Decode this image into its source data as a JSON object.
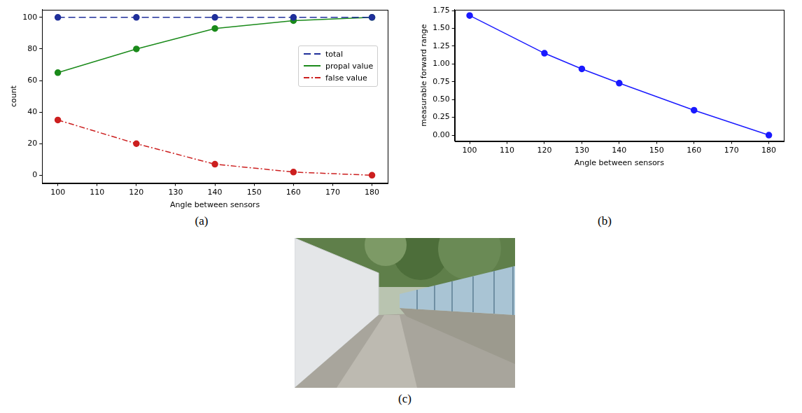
{
  "chart_data": [
    {
      "type": "line",
      "caption": "(a)",
      "x_label": "Angle between sensors",
      "y_label": "count",
      "x": [
        100,
        120,
        140,
        160,
        180
      ],
      "xlim": [
        96,
        184
      ],
      "xticks": [
        100,
        110,
        120,
        130,
        140,
        150,
        160,
        170,
        180
      ],
      "ylim": [
        -5,
        105
      ],
      "yticks": [
        0,
        20,
        40,
        60,
        80,
        100
      ],
      "grid": false,
      "legend": "right",
      "series": [
        {
          "name": "total",
          "color": "#1f2f9a",
          "marker": "o",
          "line_style": "dashed",
          "values": [
            100,
            100,
            100,
            100,
            100
          ]
        },
        {
          "name": "propal value",
          "color": "#1a8a1a",
          "marker": "o",
          "line_style": "solid",
          "values": [
            65,
            80,
            93,
            98,
            100
          ]
        },
        {
          "name": "false value",
          "color": "#cc1f1f",
          "marker": "o",
          "line_style": "dashdot",
          "values": [
            35,
            20,
            7,
            2,
            0
          ]
        }
      ]
    },
    {
      "type": "line",
      "caption": "(b)",
      "x_label": "Angle between sensors",
      "y_label": "measurable forward range",
      "x": [
        100,
        120,
        130,
        140,
        160,
        180
      ],
      "xlim": [
        96,
        184
      ],
      "xticks": [
        100,
        110,
        120,
        130,
        140,
        150,
        160,
        170,
        180
      ],
      "ylim": [
        -0.084,
        1.764
      ],
      "yticks": [
        {
          "value": 0,
          "label": "0.00"
        },
        {
          "value": 0.25,
          "label": "0.25"
        },
        {
          "value": 0.5,
          "label": "0.50"
        },
        {
          "value": 0.75,
          "label": "0.75"
        },
        {
          "value": 1,
          "label": "1.00"
        },
        {
          "value": 1.25,
          "label": "1.25"
        },
        {
          "value": 1.5,
          "label": "1.50"
        },
        {
          "value": 1.75,
          "label": "1.75"
        }
      ],
      "grid": false,
      "series": [
        {
          "color": "#1a1aff",
          "marker": "o",
          "line_style": "solid",
          "values": [
            1.68,
            1.15,
            0.93,
            0.73,
            0.35,
            0.0
          ]
        }
      ]
    }
  ],
  "image": {
    "caption": "(c)"
  }
}
